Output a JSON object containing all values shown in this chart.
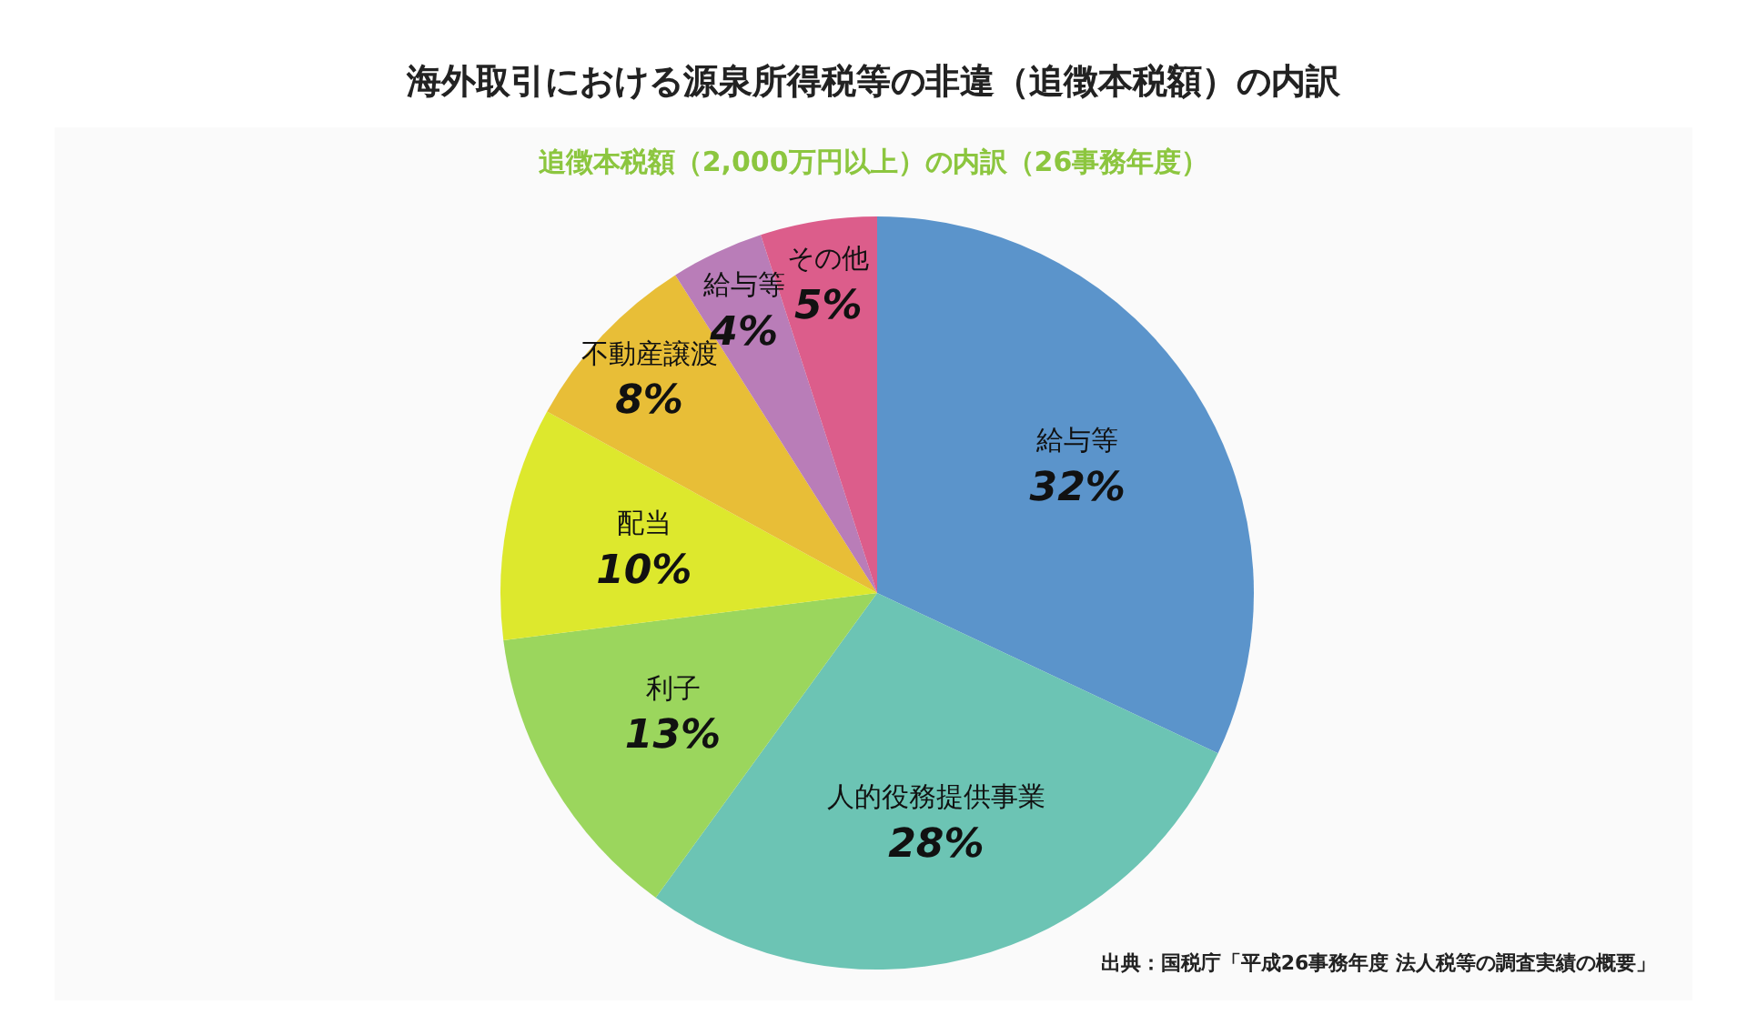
{
  "chart_data": {
    "type": "pie",
    "title": "海外取引における源泉所得税等の非違（追徴本税額）の内訳",
    "subtitle": "追徴本税額（2,000万円以上）の内訳（26事務年度）",
    "categories": [
      "給与等",
      "人的役務提供事業",
      "利子",
      "配当",
      "不動産譲渡",
      "給与等",
      "その他"
    ],
    "values": [
      32,
      28,
      13,
      10,
      8,
      4,
      5
    ],
    "value_labels": [
      "32%",
      "28%",
      "13%",
      "10%",
      "8%",
      "4%",
      "5%"
    ],
    "colors": [
      "#5b94cb",
      "#6cc4b4",
      "#9bd65d",
      "#dde82d",
      "#e8be37",
      "#b97db8",
      "#dc5d8b"
    ],
    "annotations": [
      "出典：国税庁「平成26事務年度 法人税等の調査実績の概要」"
    ]
  }
}
